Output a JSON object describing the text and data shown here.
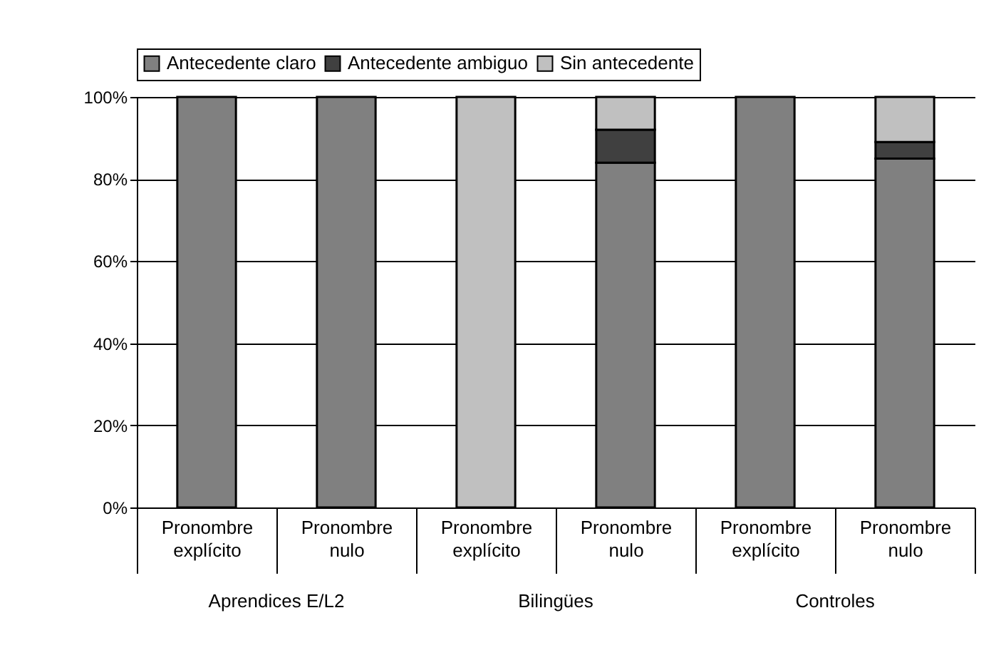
{
  "chart_data": {
    "type": "bar",
    "stacked": true,
    "categories": [
      "Pronombre explícito",
      "Pronombre nulo",
      "Pronombre explícito",
      "Pronombre nulo",
      "Pronombre explícito",
      "Pronombre nulo"
    ],
    "series": [
      {
        "name": "Antecedente claro",
        "color": "#808080",
        "values": [
          100,
          100,
          0,
          84,
          100,
          85
        ]
      },
      {
        "name": "Antecedente ambiguo",
        "color": "#404040",
        "values": [
          0,
          0,
          0,
          8,
          0,
          4
        ]
      },
      {
        "name": "Sin antecedente",
        "color": "#c0c0c0",
        "values": [
          0,
          0,
          100,
          8,
          0,
          11
        ]
      }
    ],
    "ylim": [
      0,
      100
    ],
    "yticks": [
      {
        "value": 0,
        "label": "0%"
      },
      {
        "value": 20,
        "label": "20%"
      },
      {
        "value": 40,
        "label": "40%"
      },
      {
        "value": 60,
        "label": "60%"
      },
      {
        "value": 80,
        "label": "80%"
      },
      {
        "value": 100,
        "label": "100%"
      }
    ],
    "grid": "y",
    "legend": "top",
    "annotations": [
      "Aprendices E/L2",
      "Bilingües",
      "Controles"
    ]
  }
}
